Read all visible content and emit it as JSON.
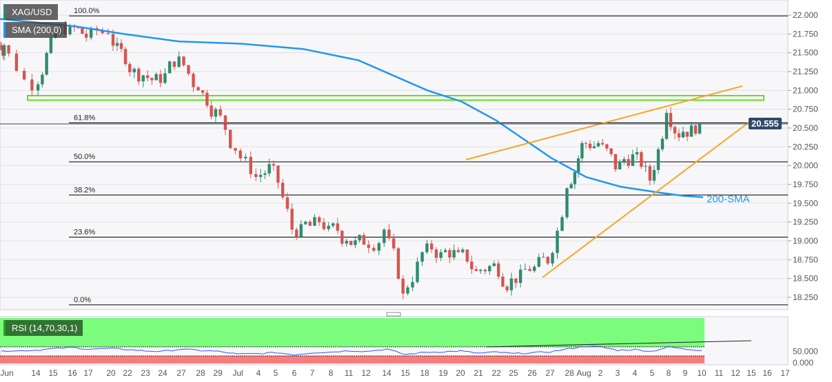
{
  "symbol": "XAG/USD",
  "indicator_label": "SMA (200,0)",
  "rsi_label": "RSI (14,70,30,1)",
  "sma_annotation": "200-SMA",
  "colors": {
    "up": "#2e8b6e",
    "down": "#d9534f",
    "sma": "#2196f3",
    "zone": "#66dd22",
    "trend": "#f5a623",
    "rsi": "#3355ff",
    "rsi_over": "#7cfc7c",
    "rsi_under": "#f87c7c",
    "price_tag": "#2e4a6b"
  },
  "chart_data": {
    "type": "candlestick",
    "ylim": [
      18.1,
      22.1
    ],
    "y_ticks": [
      "22.000",
      "21.750",
      "21.500",
      "21.250",
      "21.000",
      "20.750",
      "20.500",
      "20.250",
      "20.000",
      "19.750",
      "19.500",
      "19.250",
      "19.000",
      "18.750",
      "18.500",
      "18.250"
    ],
    "x_ticks": [
      "Jun",
      "14",
      "15",
      "16",
      "17",
      "20",
      "22",
      "23",
      "24",
      "27",
      "28",
      "29",
      "Jul",
      "4",
      "5",
      "6",
      "7",
      "8",
      "11",
      "12",
      "14",
      "15",
      "18",
      "19",
      "20",
      "21",
      "22",
      "25",
      "26",
      "27",
      "28",
      "Aug",
      "2",
      "3",
      "4",
      "5",
      "8",
      "9",
      "10",
      "11",
      "12",
      "15",
      "16",
      "17"
    ],
    "daily_closes": [
      21.6,
      21.0,
      21.7,
      21.85,
      21.7,
      21.75,
      21.35,
      21.2,
      21.1,
      21.45,
      21.0,
      20.75,
      20.2,
      19.85,
      20.0,
      19.15,
      19.2,
      19.2,
      19.0,
      18.95,
      19.15,
      18.3,
      18.85,
      18.85,
      18.85,
      18.6,
      18.7,
      18.5,
      18.6,
      18.7,
      19.7,
      20.3,
      20.3,
      19.95,
      20.15,
      19.8,
      20.7,
      20.45,
      20.555
    ],
    "sma200": [
      21.95,
      21.85,
      21.75,
      21.65,
      21.62,
      21.55,
      21.4,
      21.2,
      21.0,
      20.85,
      20.6,
      20.35,
      20.1,
      19.85,
      19.72,
      19.65,
      19.6,
      19.58
    ],
    "current_price": "20.555",
    "fibonacci": [
      {
        "label": "100.0%",
        "value": 21.99
      },
      {
        "label": "61.8%",
        "value": 20.57
      },
      {
        "label": "50.0%",
        "value": 20.05
      },
      {
        "label": "38.2%",
        "value": 19.61
      },
      {
        "label": "23.6%",
        "value": 19.05
      },
      {
        "label": "0.0%",
        "value": 18.15
      }
    ],
    "resistance_zone": [
      20.87,
      20.93
    ],
    "rsi": {
      "ylim": [
        0,
        100
      ],
      "y_ticks": [
        "50.000",
        "0.000"
      ],
      "overbought": 70,
      "oversold": 30,
      "values": [
        52,
        55,
        62,
        67,
        60,
        63,
        58,
        52,
        50,
        60,
        54,
        50,
        38,
        40,
        45,
        35,
        44,
        47,
        53,
        50,
        60,
        36,
        46,
        48,
        52,
        42,
        47,
        40,
        44,
        48,
        62,
        72,
        70,
        55,
        58,
        50,
        70,
        60,
        55
      ]
    }
  }
}
